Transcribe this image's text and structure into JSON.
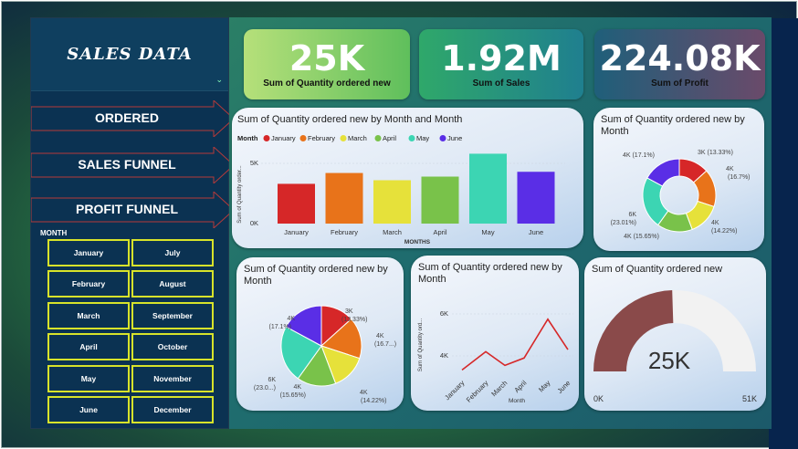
{
  "sidebar": {
    "title": "SALES DATA",
    "nav": [
      "ORDERED",
      "SALES FUNNEL",
      "PROFIT FUNNEL"
    ],
    "month_header": "MONTH",
    "months_left": [
      "January",
      "February",
      "March",
      "April",
      "May",
      "June"
    ],
    "months_right": [
      "July",
      "August",
      "September",
      "October",
      "November",
      "December"
    ]
  },
  "kpis": [
    {
      "value": "25K",
      "label": "Sum of Quantity ordered new"
    },
    {
      "value": "1.92M",
      "label": "Sum of Sales"
    },
    {
      "value": "224.08K",
      "label": "Sum of Profit"
    }
  ],
  "colors": {
    "January": "#d62728",
    "February": "#e8731a",
    "March": "#e6e13a",
    "April": "#79c24a",
    "May": "#3cd5b3",
    "June": "#5a2ee6"
  },
  "bar": {
    "title": "Sum of Quantity ordered new by Month and Month",
    "legend_title": "Month",
    "ylabel": "Sum of Quantity order...",
    "xlabel": "MONTHS",
    "ticks": [
      "5K",
      "0K"
    ]
  },
  "donut": {
    "title": "Sum of Quantity ordered new by Month",
    "labels": [
      {
        "a": "3K (13.33%)"
      },
      {
        "a": "4K",
        "b": "(16.7%)"
      },
      {
        "a": "4K",
        "b": "(14.22%)"
      },
      {
        "a": "4K (15.65%)"
      },
      {
        "a": "6K",
        "b": "(23.01%)"
      },
      {
        "a": "4K (17.1%)"
      }
    ]
  },
  "pie": {
    "title": "Sum of Quantity ordered new by Month",
    "labels": [
      {
        "a": "3K",
        "b": "(13.33%)"
      },
      {
        "a": "4K",
        "b": "(16.7...)"
      },
      {
        "a": "4K",
        "b": "(14.22%)"
      },
      {
        "a": "4K",
        "b": "(15.65%)"
      },
      {
        "a": "6K",
        "b": "(23.0...)"
      },
      {
        "a": "4K",
        "b": "(17.1%)"
      }
    ]
  },
  "line": {
    "title": "Sum of Quantity ordered new by Month",
    "ylabel": "Sum of Quantity ord...",
    "xlabel": "Month",
    "ticks": [
      "6K",
      "4K"
    ]
  },
  "gauge": {
    "title": "Sum of Quantity ordered new",
    "value_label": "25K",
    "min_label": "0K",
    "max_label": "51K",
    "fraction": 0.49
  },
  "chart_data": [
    {
      "type": "bar",
      "categories": [
        "January",
        "February",
        "March",
        "April",
        "May",
        "June"
      ],
      "values": [
        3.3,
        4.2,
        3.6,
        3.9,
        5.8,
        4.3
      ],
      "ylim": [
        0,
        6.2
      ],
      "title": "Sum of Quantity ordered new by Month and Month",
      "xlabel": "MONTHS",
      "ylabel": "Sum of Quantity order..."
    },
    {
      "type": "pie",
      "categories": [
        "January",
        "February",
        "March",
        "April",
        "May",
        "June"
      ],
      "values": [
        13.33,
        16.7,
        14.22,
        15.65,
        23.01,
        17.1
      ],
      "title": "Sum of Quantity ordered new by Month"
    },
    {
      "type": "line",
      "categories": [
        "January",
        "February",
        "March",
        "April",
        "May",
        "June"
      ],
      "values": [
        3.33,
        4.2,
        3.55,
        3.9,
        5.75,
        4.3
      ],
      "ylim": [
        3,
        6.6
      ],
      "title": "Sum of Quantity ordered new by Month",
      "xlabel": "Month",
      "ylabel": "Sum of Quantity ord..."
    }
  ]
}
